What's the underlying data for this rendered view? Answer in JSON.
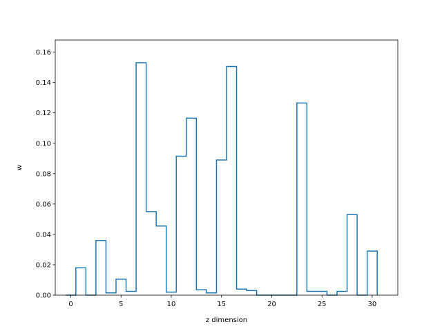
{
  "chart_data": {
    "type": "step",
    "xlabel": "z dimension",
    "ylabel": "w",
    "xlim": [
      -1.55,
      32.55
    ],
    "ylim": [
      0,
      0.168
    ],
    "xticks": [
      0,
      5,
      10,
      15,
      20,
      25,
      30
    ],
    "xtick_labels": [
      "0",
      "5",
      "10",
      "15",
      "20",
      "25",
      "30"
    ],
    "yticks": [
      0.0,
      0.02,
      0.04,
      0.06,
      0.08,
      0.1,
      0.12,
      0.14,
      0.16
    ],
    "ytick_labels": [
      "0.00",
      "0.02",
      "0.04",
      "0.06",
      "0.08",
      "0.10",
      "0.12",
      "0.14",
      "0.16"
    ],
    "grid": false,
    "series": [
      {
        "color": "#1f77b4",
        "bin_edges": [
          0,
          1,
          2,
          3,
          4,
          5,
          6,
          7,
          8,
          9,
          10,
          11,
          12,
          13,
          14,
          15,
          16,
          17,
          18,
          19,
          20,
          21,
          22,
          23,
          24,
          25,
          26,
          27,
          28,
          29,
          30,
          31
        ],
        "values": [
          0.0,
          0.018,
          0.0,
          0.036,
          0.0015,
          0.0105,
          0.0025,
          0.153,
          0.055,
          0.0455,
          0.002,
          0.0915,
          0.1165,
          0.0035,
          0.0015,
          0.089,
          0.1505,
          0.004,
          0.003,
          0.0,
          0.0,
          0.0,
          0.0,
          0.1265,
          0.0025,
          0.0025,
          0.0,
          0.0025,
          0.053,
          0.0,
          0.029
        ]
      }
    ]
  }
}
